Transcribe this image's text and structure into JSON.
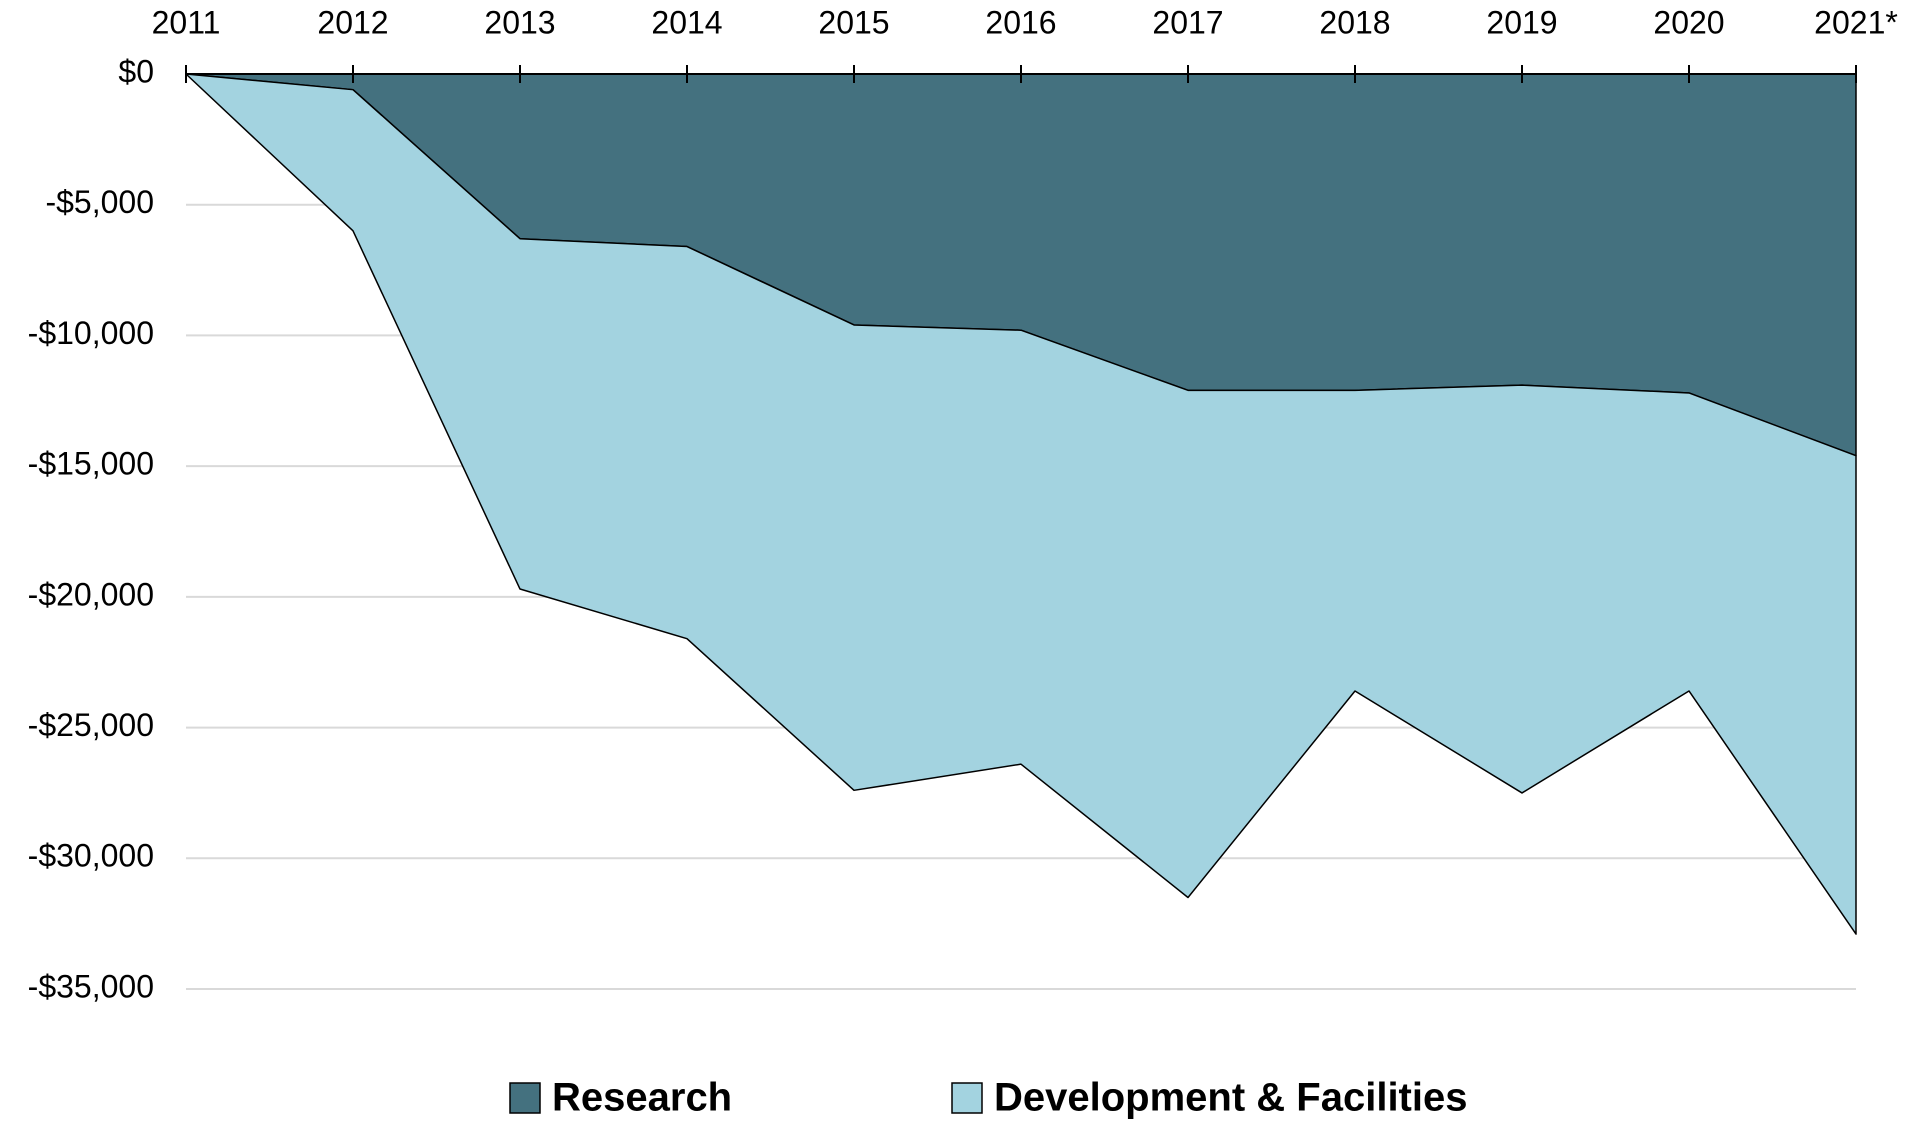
{
  "chart_data": {
    "type": "stacked_area",
    "categories": [
      "2011",
      "2012",
      "2013",
      "2014",
      "2015",
      "2016",
      "2017",
      "2018",
      "2019",
      "2020",
      "2021*"
    ],
    "series": [
      {
        "name": "Research",
        "color": "#44717f",
        "values": [
          0,
          -600,
          -6300,
          -6600,
          -9600,
          -9800,
          -12100,
          -12100,
          -11900,
          -12200,
          -14600
        ]
      },
      {
        "name": "Development & Facilities",
        "color": "#a3d3e0",
        "values": [
          0,
          -5400,
          -13400,
          -15000,
          -17800,
          -16600,
          -19400,
          -11500,
          -15600,
          -11400,
          -18300
        ]
      }
    ],
    "ylim": [
      -35000,
      0
    ],
    "yticks": [
      {
        "value": 0,
        "label": "$0"
      },
      {
        "value": -5000,
        "label": "-$5,000"
      },
      {
        "value": -10000,
        "label": "-$10,000"
      },
      {
        "value": -15000,
        "label": "-$15,000"
      },
      {
        "value": -20000,
        "label": "-$20,000"
      },
      {
        "value": -25000,
        "label": "-$25,000"
      },
      {
        "value": -30000,
        "label": "-$30,000"
      },
      {
        "value": -35000,
        "label": "-$35,000"
      }
    ],
    "grid": true,
    "legend": "bottom"
  }
}
